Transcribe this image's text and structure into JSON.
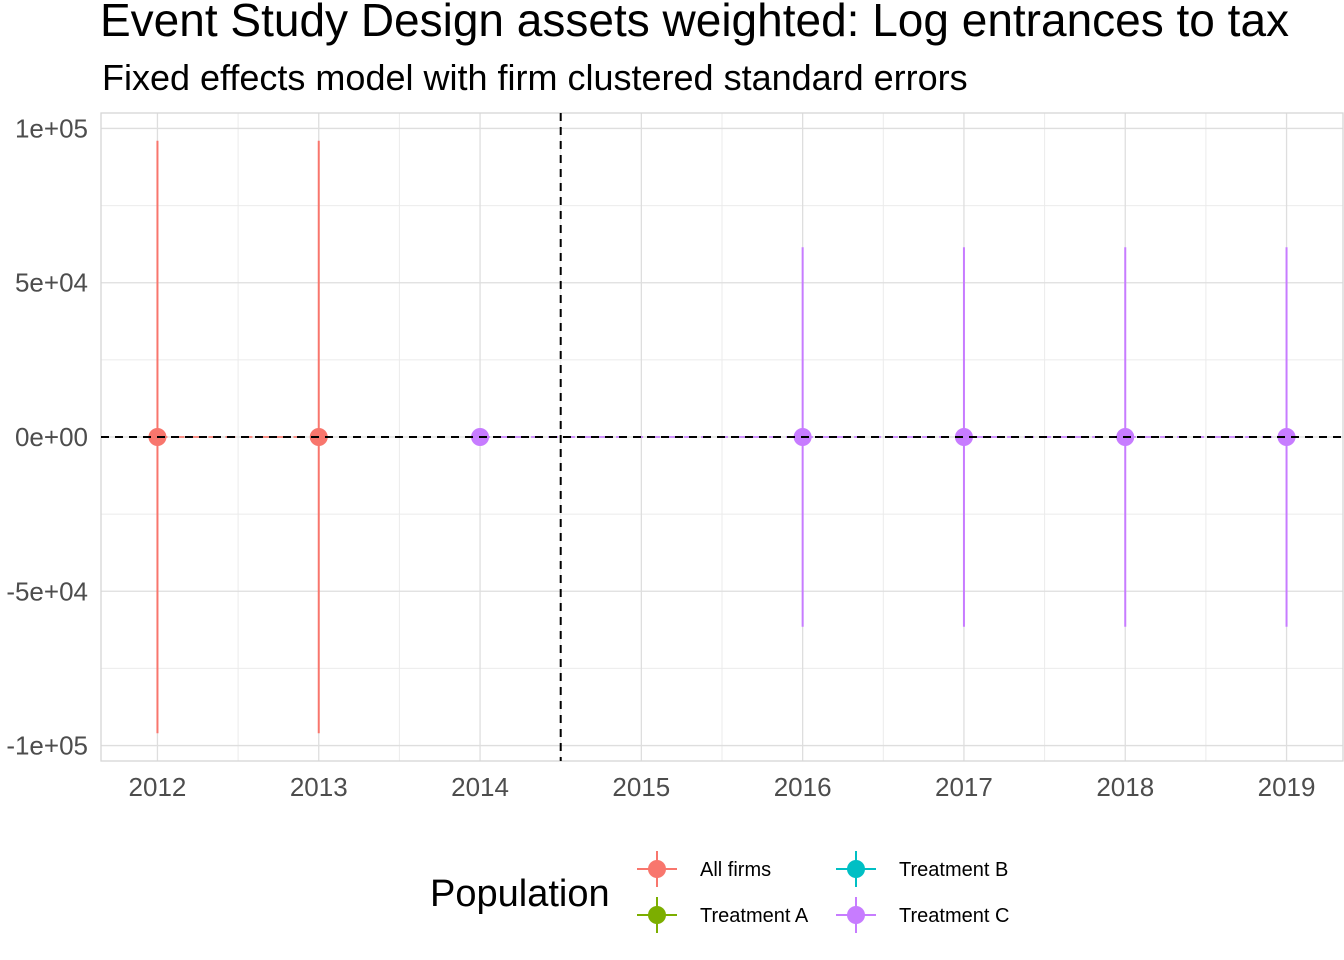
{
  "chart_data": {
    "type": "scatter",
    "title": "Event Study Design assets weighted: Log entrances to tax",
    "subtitle": "Fixed effects model with firm clustered standard errors",
    "xlabel": "",
    "ylabel": "",
    "x_ticks": [
      "2012",
      "2013",
      "2014",
      "2015",
      "2016",
      "2017",
      "2018",
      "2019"
    ],
    "y_ticks": [
      "1e+05",
      "5e+04",
      "0e+00",
      "-5e+04",
      "-1e+05"
    ],
    "y_tick_values": [
      100000,
      50000,
      0,
      -50000,
      -100000
    ],
    "xlim": [
      2011.65,
      2019.35
    ],
    "ylim": [
      -105000,
      105000
    ],
    "reference_lines": {
      "horizontal_y": 0,
      "vertical_x": 2014.5,
      "style": "dashed"
    },
    "grid": true,
    "legend_position": "bottom",
    "legend_title": "Population",
    "series": [
      {
        "name": "All firms",
        "color": "#F8766D",
        "points": [
          {
            "x": 2012,
            "y": 0,
            "ymin": -96000,
            "ymax": 96000
          },
          {
            "x": 2013,
            "y": 0,
            "ymin": -96000,
            "ymax": 96000
          }
        ]
      },
      {
        "name": "Treatment A",
        "color": "#7CAE00",
        "points": []
      },
      {
        "name": "Treatment B",
        "color": "#00BFC4",
        "points": []
      },
      {
        "name": "Treatment C",
        "color": "#C77CFF",
        "points": [
          {
            "x": 2014,
            "y": 0,
            "ymin": 0,
            "ymax": 0
          },
          {
            "x": 2016,
            "y": 0,
            "ymin": -61500,
            "ymax": 61500
          },
          {
            "x": 2017,
            "y": 0,
            "ymin": -61500,
            "ymax": 61500
          },
          {
            "x": 2018,
            "y": 0,
            "ymin": -61500,
            "ymax": 61500
          },
          {
            "x": 2019,
            "y": 0,
            "ymin": -61500,
            "ymax": 61500
          }
        ]
      }
    ]
  }
}
